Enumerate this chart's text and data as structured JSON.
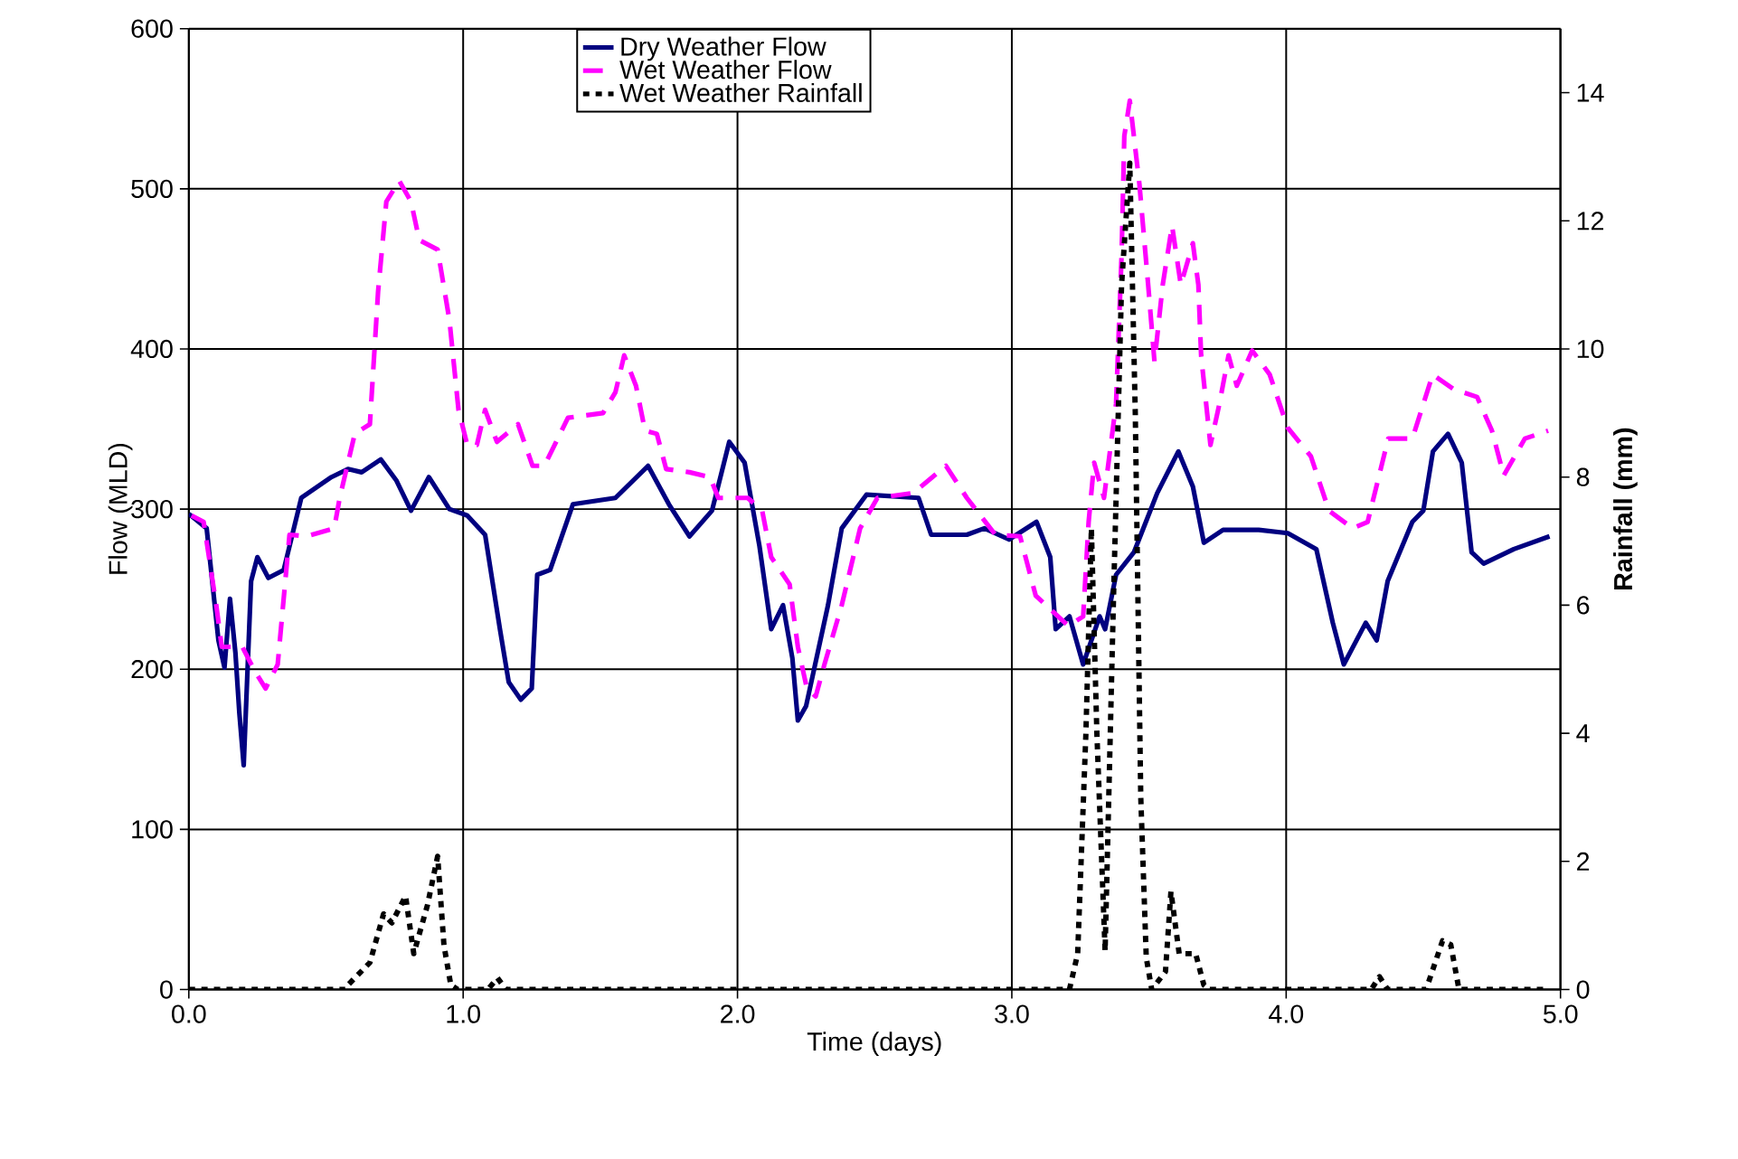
{
  "chart_data": {
    "type": "line",
    "xlabel": "Time (days)",
    "ylabel": "Flow (MLD)",
    "y2label": "Rainfall (mm)",
    "xlim": [
      0,
      5
    ],
    "xticks": [
      {
        "value": 0,
        "label": "0.0"
      },
      {
        "value": 1,
        "label": "1.0"
      },
      {
        "value": 2,
        "label": "2.0"
      },
      {
        "value": 3,
        "label": "3.0"
      },
      {
        "value": 4,
        "label": "4.0"
      },
      {
        "value": 5,
        "label": "5.0"
      }
    ],
    "ylim": [
      0,
      600
    ],
    "yticks": [
      0,
      100,
      200,
      300,
      400,
      500,
      600
    ],
    "y2lim": [
      0,
      15
    ],
    "y2ticks": [
      0,
      2,
      4,
      6,
      8,
      10,
      12,
      14
    ],
    "grid": true,
    "legend": "top",
    "series": [
      {
        "name": "Dry Weather Flow",
        "color": "#000080",
        "line_style": "solid",
        "x": [
          0,
          0.065,
          0.108,
          0.13,
          0.15,
          0.17,
          0.184,
          0.2,
          0.227,
          0.25,
          0.29,
          0.346,
          0.41,
          0.52,
          0.58,
          0.63,
          0.7,
          0.756,
          0.81,
          0.875,
          0.95,
          1.015,
          1.08,
          1.134,
          1.166,
          1.21,
          1.25,
          1.27,
          1.317,
          1.4,
          1.555,
          1.674,
          1.75,
          1.825,
          1.907,
          1.97,
          2.026,
          2.08,
          2.123,
          2.166,
          2.2,
          2.22,
          2.25,
          2.33,
          2.38,
          2.47,
          2.66,
          2.706,
          2.836,
          2.9,
          2.99,
          3.09,
          3.14,
          3.16,
          3.21,
          3.26,
          3.32,
          3.34,
          3.38,
          3.445,
          3.53,
          3.607,
          3.66,
          3.7,
          3.77,
          3.9,
          4.006,
          4.11,
          4.17,
          4.21,
          4.29,
          4.33,
          4.37,
          4.46,
          4.5,
          4.535,
          4.59,
          4.64,
          4.676,
          4.72,
          4.83,
          4.96
        ],
        "values": [
          297,
          288,
          218,
          201,
          244,
          210,
          173,
          140,
          255,
          270,
          257,
          262,
          307,
          320,
          325,
          323,
          331,
          318,
          299,
          320,
          300,
          296,
          284,
          225,
          192,
          181,
          188,
          259,
          262,
          303,
          307,
          327,
          303,
          283,
          299,
          342,
          329,
          277,
          225,
          240,
          207,
          168,
          177,
          240,
          288,
          309,
          307,
          284,
          284,
          288,
          281,
          292,
          270,
          225,
          233,
          203,
          233,
          225,
          259,
          273,
          310,
          336,
          314,
          279,
          287,
          287,
          285,
          275,
          229,
          203,
          229,
          218,
          255,
          292,
          299,
          336,
          347,
          329,
          273,
          266,
          275,
          283
        ]
      },
      {
        "name": "Wet Weather Flow",
        "color": "#ff00ff",
        "line_style": "dashed",
        "x": [
          0.01,
          0.054,
          0.1,
          0.12,
          0.195,
          0.24,
          0.28,
          0.324,
          0.367,
          0.43,
          0.53,
          0.55,
          0.605,
          0.66,
          0.69,
          0.72,
          0.767,
          0.81,
          0.84,
          0.907,
          0.95,
          0.983,
          1.015,
          1.05,
          1.08,
          1.123,
          1.2,
          1.253,
          1.296,
          1.382,
          1.51,
          1.555,
          1.587,
          1.63,
          1.663,
          1.706,
          1.74,
          1.825,
          1.9,
          1.93,
          2.037,
          2.09,
          2.123,
          2.19,
          2.22,
          2.253,
          2.285,
          2.317,
          2.38,
          2.447,
          2.51,
          2.64,
          2.76,
          2.836,
          2.94,
          3.03,
          3.087,
          3.206,
          3.26,
          3.28,
          3.3,
          3.336,
          3.38,
          3.4,
          3.41,
          3.43,
          3.465,
          3.497,
          3.52,
          3.55,
          3.584,
          3.616,
          3.66,
          3.68,
          3.69,
          3.724,
          3.757,
          3.79,
          3.82,
          3.876,
          3.94,
          4.005,
          4.09,
          4.156,
          4.243,
          4.297,
          4.372,
          4.46,
          4.534,
          4.61,
          4.696,
          4.75,
          4.793,
          4.87,
          4.955
        ],
        "values": [
          296,
          292,
          240,
          214,
          214,
          199,
          188,
          203,
          284,
          283,
          288,
          307,
          347,
          353,
          436,
          492,
          505,
          492,
          468,
          462,
          418,
          362,
          340,
          340,
          362,
          342,
          353,
          327,
          327,
          357,
          360,
          373,
          396,
          377,
          349,
          347,
          325,
          323,
          320,
          307,
          307,
          299,
          270,
          253,
          214,
          188,
          183,
          203,
          240,
          288,
          307,
          310,
          327,
          307,
          284,
          283,
          246,
          227,
          233,
          292,
          329,
          307,
          366,
          458,
          533,
          555,
          503,
          440,
          392,
          440,
          477,
          440,
          466,
          440,
          396,
          340,
          366,
          396,
          377,
          399,
          384,
          351,
          333,
          299,
          288,
          292,
          344,
          344,
          384,
          375,
          370,
          349,
          321,
          344,
          349
        ]
      },
      {
        "name": "Wet Weather Rainfall",
        "color": "#000000",
        "line_style": "dotted",
        "axis": "y2",
        "x": [
          0,
          0.57,
          0.58,
          0.66,
          0.71,
          0.74,
          0.79,
          0.82,
          0.87,
          0.907,
          0.93,
          0.955,
          0.98,
          1.09,
          1.125,
          1.157,
          3.21,
          3.24,
          3.27,
          3.29,
          3.31,
          3.34,
          3.37,
          3.4,
          3.43,
          3.45,
          3.47,
          3.49,
          3.51,
          3.56,
          3.58,
          3.61,
          3.67,
          3.7,
          3.72,
          4.31,
          4.34,
          4.37,
          4.51,
          4.57,
          4.6,
          4.63,
          4.95
        ],
        "values": [
          0,
          0,
          0.07,
          0.42,
          1.18,
          1.04,
          1.46,
          0.56,
          1.32,
          2.08,
          0.69,
          0.07,
          0,
          0,
          0.18,
          0,
          0,
          0.56,
          4,
          7.2,
          4,
          0.6,
          6,
          11,
          12.9,
          9,
          3,
          0.5,
          0,
          0.28,
          1.53,
          0.56,
          0.56,
          0.07,
          0,
          0,
          0.2,
          0,
          0,
          0.76,
          0.7,
          0,
          0
        ]
      }
    ]
  }
}
